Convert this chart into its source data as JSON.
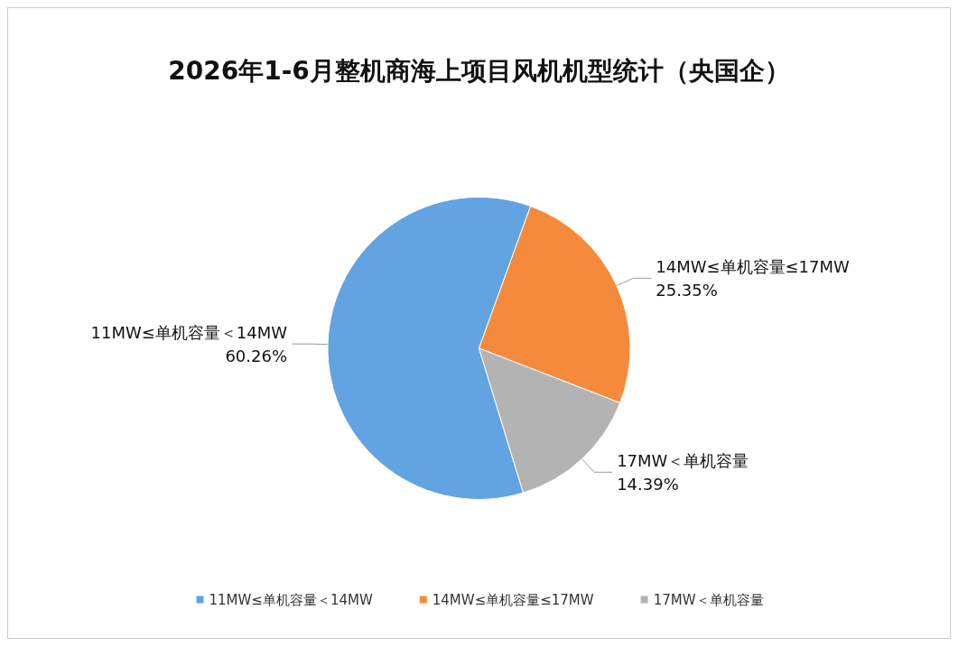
{
  "chart_data": {
    "type": "pie",
    "title": "2026年1-6月整机商海上项目风机机型统计（央国企）",
    "categories": [
      "11MW≤单机容量＜14MW",
      "14MW≤单机容量≤17MW",
      "17MW＜单机容量"
    ],
    "values": [
      60.26,
      25.35,
      14.39
    ],
    "colors": [
      "#62a3e2",
      "#f68a3c",
      "#b3b3b3"
    ],
    "value_labels": [
      "60.26%",
      "25.35%",
      "14.39%"
    ],
    "legend": "bottom"
  }
}
